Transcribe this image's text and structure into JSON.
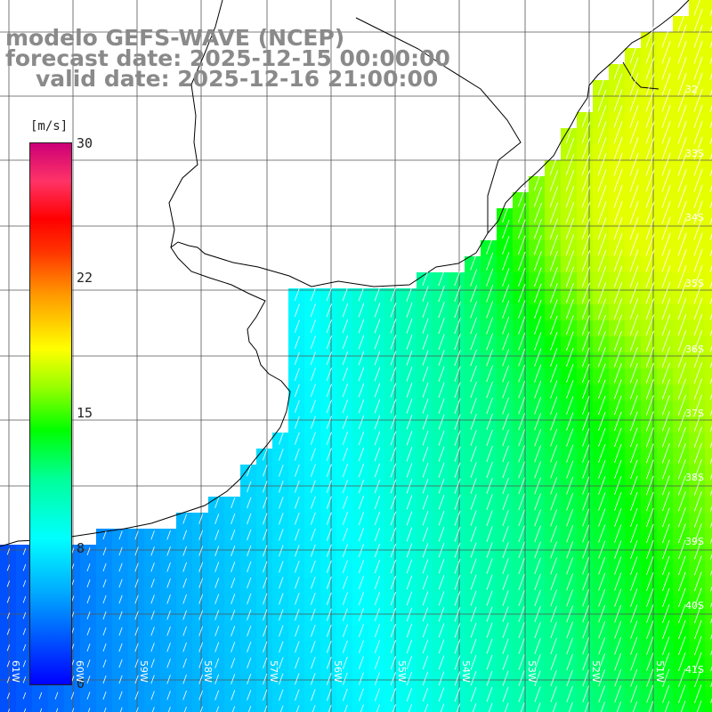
{
  "title": {
    "line1": "modelo GEFS-WAVE (NCEP)",
    "line2": "forecast date: 2025-12-15 00:00:00",
    "line3": "valid date: 2025-12-16 21:00:00"
  },
  "colorbar": {
    "unit": "[m/s]",
    "ticks": [
      "30",
      "22",
      "15",
      "8",
      "0"
    ],
    "tick_values": [
      30,
      22,
      15,
      8,
      0
    ],
    "colors": [
      "#0000ff",
      "#00aaff",
      "#00ffff",
      "#00ff99",
      "#00ff00",
      "#99ff00",
      "#ffff00",
      "#ff9900",
      "#ff0000",
      "#cc0077"
    ]
  },
  "lat_labels": [
    "32",
    "33S",
    "34S",
    "35S",
    "36S",
    "37S",
    "38S",
    "39S",
    "40S",
    "41S"
  ],
  "lon_labels": [
    "61W",
    "60W",
    "59W",
    "58W",
    "57W",
    "56W",
    "55W",
    "54W",
    "53W",
    "52W",
    "51W"
  ],
  "map": {
    "land_color": "#ffffff",
    "coast_color": "#000000",
    "grid_color": "#555555",
    "arrow_color": "#ffffff",
    "lon_range": [
      -61.2,
      -50.2
    ],
    "lat_range": [
      -41.3,
      -31.2
    ]
  }
}
